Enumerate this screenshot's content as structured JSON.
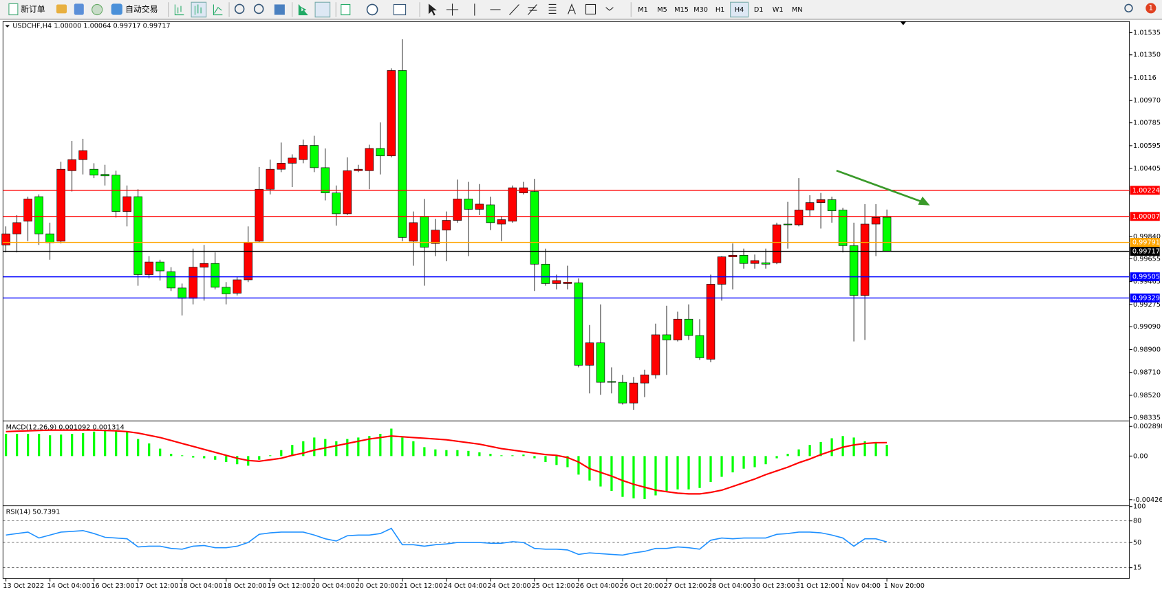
{
  "toolbar": {
    "new_order": "新订单",
    "auto_trade": "自动交易",
    "timeframes": [
      "M1",
      "M5",
      "M15",
      "M30",
      "H1",
      "H4",
      "D1",
      "W1",
      "MN"
    ],
    "active_timeframe": "H4",
    "notification": "1"
  },
  "chart_data": [
    {
      "type": "candlestick",
      "title": "USDCHF,H4  1.00000 1.00064 0.99717 0.99717",
      "up_color": "#ff0000",
      "down_color": "#00ff00",
      "categories": [
        "13 Oct 2022",
        null,
        null,
        null,
        "14 Oct 04:00",
        null,
        null,
        null,
        "16 Oct 23:00",
        null,
        null,
        null,
        "17 Oct 12:00",
        null,
        null,
        null,
        "18 Oct 04:00",
        null,
        null,
        null,
        "18 Oct 20:00",
        null,
        null,
        null,
        "19 Oct 12:00",
        null,
        null,
        null,
        "20 Oct 04:00",
        null,
        null,
        null,
        "20 Oct 20:00",
        null,
        null,
        null,
        "21 Oct 12:00",
        null,
        null,
        null,
        "24 Oct 04:00",
        null,
        null,
        null,
        "24 Oct 20:00",
        null,
        null,
        null,
        "25 Oct 12:00",
        null,
        null,
        null,
        "26 Oct 04:00",
        null,
        null,
        null,
        "26 Oct 20:00",
        null,
        null,
        null,
        "27 Oct 12:00",
        null,
        null,
        null,
        "28 Oct 04:00",
        null,
        null,
        null,
        "30 Oct 23:00",
        null,
        null,
        null,
        "31 Oct 12:00",
        null,
        null,
        null,
        "1 Nov 04:00",
        null,
        null,
        null,
        "1 Nov 20:00"
      ],
      "candles": [
        [
          0.9977,
          0.99924,
          0.99708,
          0.99862
        ],
        [
          0.99862,
          1.00017,
          0.99708,
          0.99955
        ],
        [
          0.99967,
          1.00171,
          0.99801,
          1.00152
        ],
        [
          1.00171,
          1.0019,
          0.9977,
          0.99862
        ],
        [
          0.99862,
          0.99955,
          0.99647,
          0.99788
        ],
        [
          0.99801,
          1.00461,
          0.99782,
          1.00399
        ],
        [
          1.00387,
          1.00634,
          1.00214,
          1.00479
        ],
        [
          1.00479,
          1.00652,
          1.00356,
          1.00554
        ],
        [
          1.00399,
          1.00449,
          1.00325,
          1.0035
        ],
        [
          1.00356,
          1.00436,
          1.00264,
          1.00344
        ],
        [
          1.0035,
          1.00387,
          0.99998,
          1.00048
        ],
        [
          1.00048,
          1.00264,
          0.99924,
          1.00171
        ],
        [
          1.00171,
          1.00233,
          0.99431,
          0.99523
        ],
        [
          0.99523,
          0.99677,
          0.99492,
          0.99628
        ],
        [
          0.99628,
          0.99647,
          0.99474,
          0.99554
        ],
        [
          0.99548,
          0.99585,
          0.99387,
          0.99412
        ],
        [
          0.99412,
          0.99449,
          0.99184,
          0.99326
        ],
        [
          0.99326,
          0.99739,
          0.99276,
          0.99585
        ],
        [
          0.99585,
          0.9977,
          0.99307,
          0.99616
        ],
        [
          0.99616,
          0.99708,
          0.994,
          0.99418
        ],
        [
          0.99418,
          0.99461,
          0.99276,
          0.99363
        ],
        [
          0.99369,
          0.99505,
          0.9935,
          0.9948
        ],
        [
          0.9948,
          0.99924,
          0.99461,
          0.99788
        ],
        [
          0.99801,
          1.00418,
          0.99788,
          1.00233
        ],
        [
          1.00233,
          1.00479,
          1.0019,
          1.00399
        ],
        [
          1.00399,
          1.00621,
          1.00375,
          1.00449
        ],
        [
          1.00449,
          1.00523,
          1.00251,
          1.00492
        ],
        [
          1.00479,
          1.00646,
          1.00449,
          1.00597
        ],
        [
          1.00597,
          1.00677,
          1.00375,
          1.00412
        ],
        [
          1.00412,
          1.00572,
          1.0014,
          1.00202
        ],
        [
          1.00202,
          1.00264,
          0.9993,
          1.00029
        ],
        [
          1.00029,
          1.00498,
          1.00017,
          1.00387
        ],
        [
          1.00387,
          1.00436,
          1.00375,
          1.00399
        ],
        [
          1.00387,
          1.00603,
          1.00233,
          1.00572
        ],
        [
          1.00572,
          1.00788,
          1.00356,
          1.0051
        ],
        [
          1.0051,
          1.01238,
          1.00498,
          1.0122
        ],
        [
          1.0122,
          1.01479,
          0.99801,
          0.99832
        ],
        [
          0.99801,
          1.00048,
          0.99597,
          0.99955
        ],
        [
          1.00004,
          1.00152,
          0.99431,
          0.99751
        ],
        [
          0.99782,
          0.99986,
          0.99677,
          0.99893
        ],
        [
          0.99893,
          1.00048,
          0.99634,
          0.99974
        ],
        [
          0.99974,
          1.00313,
          0.99955,
          1.00152
        ],
        [
          1.00152,
          1.00294,
          0.99677,
          1.00066
        ],
        [
          1.00066,
          1.00276,
          1.00017,
          1.00109
        ],
        [
          1.00103,
          1.00171,
          0.99893,
          0.99955
        ],
        [
          0.99943,
          1.00004,
          0.99801,
          0.9998
        ],
        [
          0.99967,
          1.00264,
          0.99955,
          1.00245
        ],
        [
          1.00202,
          1.00294,
          1.0019,
          1.00245
        ],
        [
          1.00214,
          1.00319,
          0.99387,
          0.9961
        ],
        [
          0.9961,
          0.99739,
          0.99431,
          0.99449
        ],
        [
          0.99449,
          0.99523,
          0.994,
          0.99474
        ],
        [
          0.99449,
          0.99597,
          0.994,
          0.99461
        ],
        [
          0.99455,
          0.99492,
          0.98752,
          0.9877
        ],
        [
          0.9877,
          0.99104,
          0.98536,
          0.98956
        ],
        [
          0.98956,
          0.99276,
          0.98524,
          0.98628
        ],
        [
          0.98635,
          0.98752,
          0.98536,
          0.98628
        ],
        [
          0.98628,
          0.9869,
          0.98443,
          0.98456
        ],
        [
          0.98456,
          0.98672,
          0.984,
          0.98622
        ],
        [
          0.98622,
          0.98733,
          0.98505,
          0.9869
        ],
        [
          0.9869,
          0.99116,
          0.98659,
          0.99023
        ],
        [
          0.99023,
          0.99264,
          0.9869,
          0.9898
        ],
        [
          0.9898,
          0.99215,
          0.98968,
          0.99153
        ],
        [
          0.99153,
          0.99276,
          0.9898,
          0.99017
        ],
        [
          0.99017,
          0.99153,
          0.98814,
          0.98832
        ],
        [
          0.9882,
          0.99523,
          0.98795,
          0.99443
        ],
        [
          0.99443,
          0.99677,
          0.99307,
          0.99671
        ],
        [
          0.99671,
          0.99782,
          0.994,
          0.99684
        ],
        [
          0.99684,
          0.99739,
          0.99573,
          0.99616
        ],
        [
          0.99616,
          0.9969,
          0.99573,
          0.9964
        ],
        [
          0.99622,
          0.99739,
          0.99573,
          0.9961
        ],
        [
          0.99622,
          0.99955,
          0.9961,
          0.99937
        ],
        [
          0.99943,
          1.00128,
          0.99739,
          0.99937
        ],
        [
          0.99937,
          1.00325,
          0.99924,
          1.0006
        ],
        [
          1.0006,
          1.00183,
          1.00004,
          1.00122
        ],
        [
          1.00122,
          1.00202,
          0.99906,
          1.00146
        ],
        [
          1.00146,
          1.00171,
          0.99955,
          1.00054
        ],
        [
          1.0006,
          1.00078,
          0.99708,
          0.99764
        ],
        [
          0.99764,
          0.99955,
          0.98968,
          0.9935
        ],
        [
          0.9935,
          1.00109,
          0.9898,
          0.99943
        ],
        [
          0.99943,
          1.00109,
          0.99677,
          0.99998
        ],
        [
          1.0,
          1.00064,
          0.99717,
          0.99717
        ]
      ],
      "ylim": [
        0.98317,
        1.01627
      ],
      "yticks": [
        1.01535,
        {
          "value": 1.0135,
          "label": "1.01350"
        },
        1.0116,
        {
          "value": 1.0097,
          "label": "1.00970"
        },
        1.00785,
        1.00595,
        1.00405,
        {
          "value": 0.9984,
          "label": "0.99840"
        },
        0.99655,
        0.99465,
        0.99275,
        {
          "value": 0.9909,
          "label": "0.99090"
        },
        {
          "value": 0.989,
          "label": "0.98900"
        },
        {
          "value": 0.9871,
          "label": "0.98710"
        },
        {
          "value": 0.9852,
          "label": "0.98520"
        },
        0.98335
      ],
      "hlines": [
        {
          "value": 1.00224,
          "color": "#ff0000"
        },
        {
          "value": 1.00007,
          "color": "#ff0000"
        },
        {
          "value": 0.99791,
          "color": "#ffa500"
        },
        {
          "value": 0.99717,
          "color": "#000000"
        },
        {
          "value": 0.99505,
          "color": "#0000ff"
        },
        {
          "value": 0.99329,
          "color": "#0000ff"
        }
      ]
    },
    {
      "type": "macd",
      "title": "MACD(12,26,9) 0.001092 0.001314",
      "series": [
        {
          "kind": "bar",
          "color": "#00ff00",
          "values": [
            0.002174,
            0.002174,
            0.002174,
            0.002174,
            0.002029,
            0.0021,
            0.002174,
            0.002246,
            0.002391,
            0.002464,
            0.002536,
            0.002391,
            0.001667,
            0.001232,
            0.000725,
            0.000217,
            7.2e-05,
            -0.000145,
            -0.000217,
            -0.000362,
            -0.00058,
            -0.000797,
            -0.000942,
            -0.000362,
            7.2e-05,
            0.00058,
            0.001087,
            0.001449,
            0.001812,
            0.001667,
            0.001449,
            0.001667,
            0.001812,
            0.001957,
            0.002174,
            0.002681,
            0.001812,
            0.001449,
            0.00087,
            0.000652,
            0.00058,
            0.00058,
            0.000507,
            0.000362,
            0.000217,
            7.2e-05,
            7.2e-05,
            0.000145,
            -0.000217,
            -0.00058,
            -0.00087,
            -0.001087,
            -0.001812,
            -0.002391,
            -0.002971,
            -0.003406,
            -0.003986,
            -0.00413,
            -0.004203,
            -0.003841,
            -0.003406,
            -0.003261,
            -0.003261,
            -0.003116,
            -0.002536,
            -0.002029,
            -0.001594,
            -0.001232,
            -0.001087,
            -0.000797,
            -0.000217,
            0.000217,
            0.000652,
            0.001087,
            0.001377,
            0.001739,
            0.001957,
            0.001812,
            0.001449,
            0.001377,
            0.001092
          ]
        },
        {
          "kind": "line",
          "color": "#ff0000",
          "values": [
            0.002391,
            0.002428,
            0.002464,
            0.0025,
            0.002536,
            0.002536,
            0.002536,
            0.002536,
            0.002536,
            0.0025,
            0.002464,
            0.002391,
            0.002246,
            0.002029,
            0.001812,
            0.001522,
            0.001232,
            0.000942,
            0.000652,
            0.000362,
            7.2e-05,
            -0.000217,
            -0.000435,
            -0.000507,
            -0.000362,
            -0.000217,
            7.2e-05,
            0.00029,
            0.00058,
            0.000797,
            0.001014,
            0.001232,
            0.001449,
            0.001667,
            0.001812,
            0.001957,
            0.001884,
            0.001812,
            0.001739,
            0.001667,
            0.001594,
            0.001449,
            0.001304,
            0.001159,
            0.000942,
            0.000725,
            0.00058,
            0.000435,
            0.00029,
            0.000145,
            7.2e-05,
            -0.000145,
            -0.00058,
            -0.001232,
            -0.001594,
            -0.001957,
            -0.002391,
            -0.002754,
            -0.003043,
            -0.003333,
            -0.003478,
            -0.003623,
            -0.003696,
            -0.003696,
            -0.003551,
            -0.003333,
            -0.002971,
            -0.002609,
            -0.002246,
            -0.001812,
            -0.001449,
            -0.001087,
            -0.000652,
            -0.00029,
            0.000145,
            0.000507,
            0.00087,
            0.001087,
            0.001232,
            0.001304,
            0.001314
          ]
        }
      ],
      "ylim": [
        -0.004783,
        0.003333
      ],
      "yticks": [
        0.002898,
        {
          "value": 0,
          "label": "0.00"
        },
        -0.004261
      ]
    },
    {
      "type": "line",
      "title": "RSI(14) 50.7391",
      "series": [
        {
          "color": "#1e90ff",
          "values": [
            60.3,
            62.4,
            64.4,
            56.2,
            60.3,
            64.4,
            65.4,
            66.5,
            62.4,
            57.2,
            56.2,
            55.1,
            43.8,
            44.8,
            44.8,
            41.7,
            40.7,
            44.8,
            45.8,
            42.7,
            42.7,
            44.8,
            50.0,
            61.3,
            63.4,
            64.4,
            64.4,
            64.4,
            60.3,
            55.1,
            52.0,
            59.3,
            60.3,
            60.3,
            62.4,
            69.6,
            46.9,
            46.9,
            44.8,
            46.9,
            47.9,
            50.0,
            50.0,
            50.0,
            48.9,
            48.9,
            51.0,
            50.0,
            41.7,
            40.7,
            40.7,
            39.6,
            33.4,
            35.5,
            34.4,
            33.4,
            32.4,
            35.5,
            37.6,
            41.7,
            41.7,
            43.8,
            42.7,
            40.7,
            53.1,
            56.2,
            55.1,
            56.2,
            56.2,
            56.2,
            61.3,
            62.4,
            64.4,
            64.4,
            63.4,
            60.3,
            56.2,
            44.8,
            55.1,
            55.1,
            50.7391
          ]
        }
      ],
      "ylim": [
        0,
        100
      ],
      "yticks": [
        100,
        80,
        50,
        15
      ]
    }
  ]
}
